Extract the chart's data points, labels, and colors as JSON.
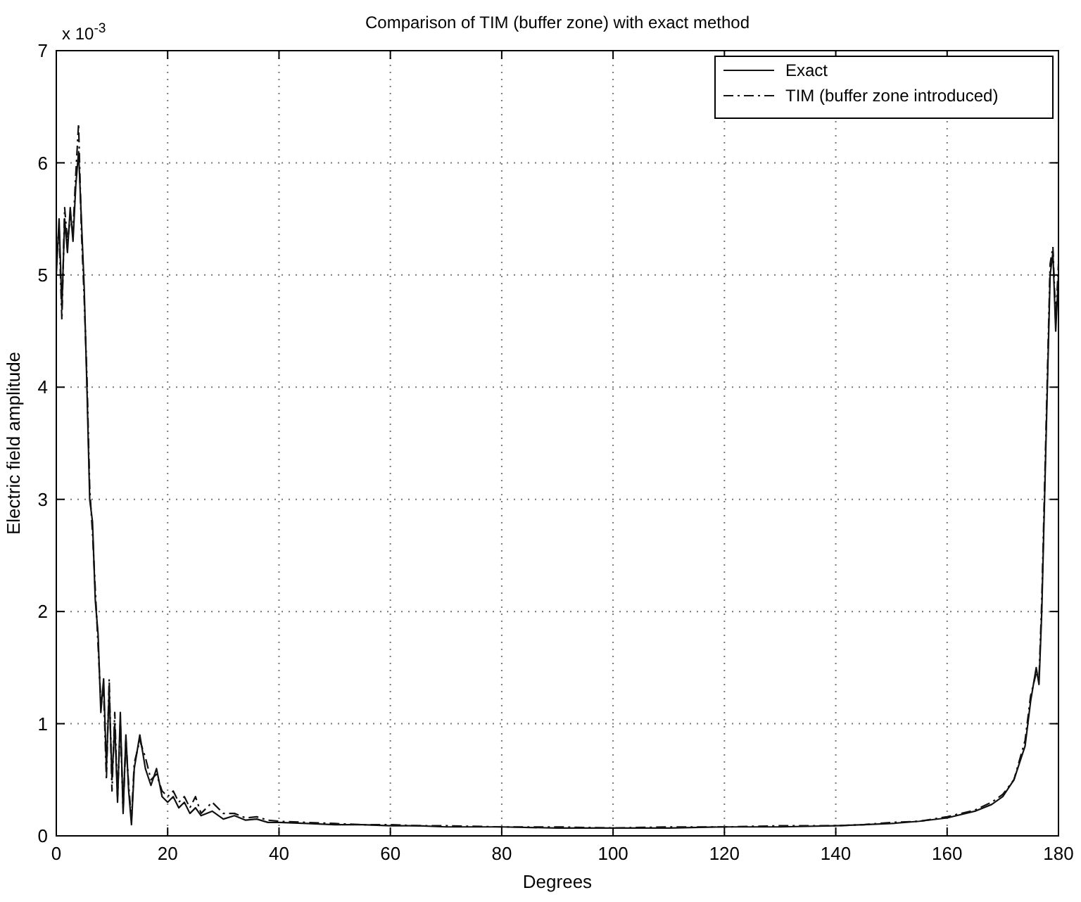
{
  "chart_data": {
    "type": "line",
    "title": "Comparison of TIM (buffer zone)  with exact method",
    "xlabel": "Degrees",
    "ylabel": "Electric field amplitude",
    "annotations": [
      "x 10$^{-3}$"
    ],
    "xlim": [
      0,
      180
    ],
    "xticks": [
      0,
      20,
      40,
      60,
      80,
      100,
      120,
      140,
      160,
      180
    ],
    "ylim": [
      0,
      7
    ],
    "yticks": [
      0,
      1,
      2,
      3,
      4,
      5,
      6,
      7
    ],
    "grid": true,
    "legend": "top right",
    "marker": "none",
    "series": [
      {
        "name": "Exact",
        "color": "#111111",
        "line_style": "solid",
        "x": [
          0,
          0.5,
          1,
          1.5,
          2,
          2.5,
          3,
          3.5,
          4,
          4.5,
          5,
          5.5,
          6,
          6.5,
          7,
          7.5,
          8,
          8.5,
          9,
          9.5,
          10,
          10.5,
          11,
          11.5,
          12,
          12.5,
          13,
          13.5,
          14,
          15,
          16,
          17,
          18,
          19,
          20,
          21,
          22,
          23,
          24,
          25,
          26,
          28,
          30,
          32,
          34,
          36,
          38,
          40,
          45,
          50,
          55,
          60,
          65,
          70,
          80,
          90,
          100,
          110,
          120,
          130,
          140,
          145,
          150,
          155,
          160,
          165,
          168,
          170,
          172,
          174,
          175,
          176,
          176.5,
          177,
          177.5,
          178,
          178.5,
          179,
          179.5,
          180
        ],
        "values": [
          5.0,
          5.5,
          4.7,
          5.5,
          5.2,
          5.6,
          5.3,
          5.8,
          6.1,
          5.5,
          4.9,
          4.0,
          3.0,
          2.8,
          2.1,
          1.8,
          1.1,
          1.4,
          0.6,
          1.3,
          0.5,
          1.0,
          0.3,
          1.1,
          0.2,
          0.9,
          0.4,
          0.1,
          0.6,
          0.9,
          0.6,
          0.45,
          0.6,
          0.35,
          0.3,
          0.35,
          0.25,
          0.3,
          0.2,
          0.25,
          0.18,
          0.22,
          0.15,
          0.18,
          0.14,
          0.15,
          0.12,
          0.12,
          0.11,
          0.1,
          0.1,
          0.09,
          0.09,
          0.08,
          0.08,
          0.07,
          0.07,
          0.07,
          0.08,
          0.08,
          0.09,
          0.1,
          0.11,
          0.13,
          0.16,
          0.22,
          0.28,
          0.35,
          0.5,
          0.8,
          1.2,
          1.5,
          1.35,
          2.0,
          3.0,
          4.0,
          5.0,
          5.2,
          4.5,
          5.0
        ]
      },
      {
        "name": "TIM (buffer zone introduced)",
        "color": "#111111",
        "line_style": "dashed",
        "x": [
          0,
          0.5,
          1,
          1.5,
          2,
          2.5,
          3,
          3.5,
          4,
          4.5,
          5,
          5.5,
          6,
          6.5,
          7,
          7.5,
          8,
          8.5,
          9,
          9.5,
          10,
          10.5,
          11,
          11.5,
          12,
          12.5,
          13,
          13.5,
          14,
          15,
          16,
          17,
          18,
          19,
          20,
          21,
          22,
          23,
          24,
          25,
          26,
          28,
          30,
          32,
          34,
          36,
          38,
          40,
          45,
          50,
          55,
          60,
          65,
          70,
          80,
          90,
          100,
          110,
          120,
          130,
          140,
          145,
          150,
          155,
          160,
          165,
          168,
          170,
          172,
          174,
          175,
          176,
          176.5,
          177,
          177.5,
          178,
          178.5,
          179,
          179.5,
          180
        ],
        "values": [
          5.2,
          5.4,
          4.6,
          5.6,
          5.3,
          5.5,
          5.4,
          5.9,
          6.35,
          5.4,
          4.8,
          4.1,
          3.1,
          2.7,
          2.2,
          1.7,
          1.2,
          1.3,
          0.5,
          1.4,
          0.4,
          1.1,
          0.35,
          1.0,
          0.25,
          0.85,
          0.45,
          0.15,
          0.65,
          0.85,
          0.7,
          0.5,
          0.55,
          0.4,
          0.35,
          0.4,
          0.3,
          0.35,
          0.25,
          0.35,
          0.2,
          0.3,
          0.2,
          0.2,
          0.16,
          0.17,
          0.14,
          0.13,
          0.12,
          0.11,
          0.1,
          0.1,
          0.09,
          0.09,
          0.08,
          0.08,
          0.07,
          0.08,
          0.08,
          0.09,
          0.09,
          0.1,
          0.12,
          0.13,
          0.17,
          0.23,
          0.3,
          0.37,
          0.5,
          0.85,
          1.25,
          1.45,
          1.4,
          2.1,
          3.1,
          4.1,
          5.1,
          5.25,
          4.6,
          5.1
        ]
      }
    ]
  }
}
